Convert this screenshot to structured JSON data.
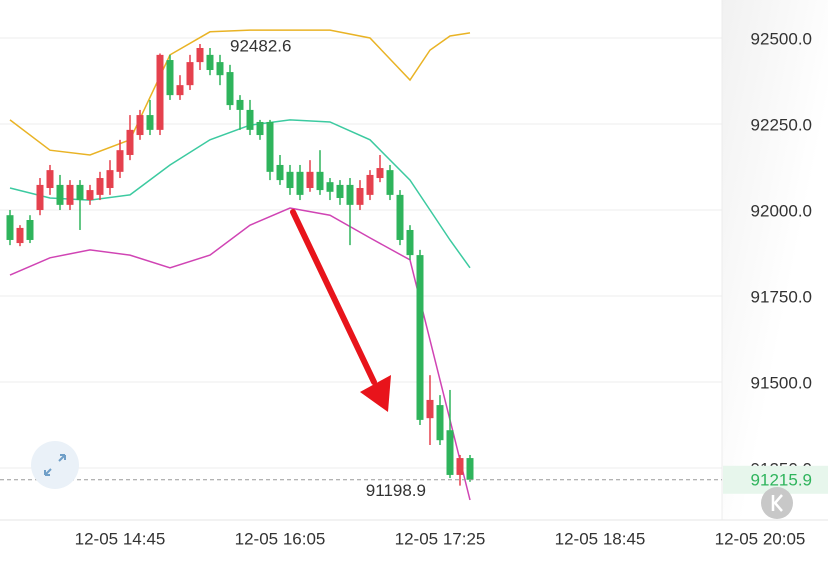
{
  "chart_data": {
    "type": "candlestick",
    "up_color": "#e5414e",
    "down_color": "#2fb45c",
    "ylim": [
      91099,
      92610.5
    ],
    "yticks": [
      {
        "value": 92500,
        "label": "92500.0"
      },
      {
        "value": 92250,
        "label": "92250.0"
      },
      {
        "value": 92000,
        "label": "92000.0"
      },
      {
        "value": 91750,
        "label": "91750.0"
      },
      {
        "value": 91500,
        "label": "91500.0"
      },
      {
        "value": 91250,
        "label": "91250.0"
      }
    ],
    "xlim": [
      "12-05 13:45",
      "12-05 20:39"
    ],
    "xticks": [
      "12-05 14:45",
      "12-05 16:05",
      "12-05 17:25",
      "12-05 18:45",
      "12-05 20:05"
    ],
    "grid": true,
    "candles": {
      "x": [
        "12-05 13:50",
        "12-05 13:55",
        "12-05 14:00",
        "12-05 14:05",
        "12-05 14:10",
        "12-05 14:15",
        "12-05 14:20",
        "12-05 14:25",
        "12-05 14:30",
        "12-05 14:35",
        "12-05 14:40",
        "12-05 14:45",
        "12-05 14:50",
        "12-05 14:55",
        "12-05 15:00",
        "12-05 15:05",
        "12-05 15:10",
        "12-05 15:15",
        "12-05 15:20",
        "12-05 15:25",
        "12-05 15:30",
        "12-05 15:35",
        "12-05 15:40",
        "12-05 15:45",
        "12-05 15:50",
        "12-05 15:55",
        "12-05 16:00",
        "12-05 16:05",
        "12-05 16:10",
        "12-05 16:15",
        "12-05 16:20",
        "12-05 16:25",
        "12-05 16:30",
        "12-05 16:35",
        "12-05 16:40",
        "12-05 16:45",
        "12-05 16:50",
        "12-05 16:55",
        "12-05 17:00",
        "12-05 17:05",
        "12-05 17:10",
        "12-05 17:15",
        "12-05 17:20",
        "12-05 17:25",
        "12-05 17:30",
        "12-05 17:35",
        "12-05 17:40"
      ],
      "open": [
        91985,
        91904,
        91971,
        92000,
        92064,
        92073,
        92015,
        92073,
        92029,
        92044,
        92064,
        92111,
        92160,
        92218,
        92276,
        92233,
        92436,
        92334,
        92363,
        92430,
        92451,
        92430,
        92401,
        92320,
        92291,
        92256,
        92256,
        92131,
        92111,
        92111,
        92064,
        92111,
        92081,
        92073,
        92073,
        92015,
        92044,
        92093,
        92116,
        92044,
        91942,
        91869,
        91395,
        91433,
        91360,
        91230,
        91279
      ],
      "high": [
        92000,
        91956,
        91985,
        92093,
        92131,
        92102,
        92087,
        92087,
        92073,
        92111,
        92145,
        92204,
        92276,
        92291,
        92320,
        92455,
        92451,
        92392,
        92451,
        92482.6,
        92471,
        92451,
        92422,
        92334,
        92320,
        92262,
        92262,
        92160,
        92131,
        92131,
        92145,
        92174,
        92093,
        92087,
        92093,
        92087,
        92116,
        92160,
        92131,
        92058,
        91956,
        91884,
        91520,
        91462,
        91477,
        91288,
        91288
      ],
      "low": [
        91898,
        91895,
        91904,
        91985,
        92044,
        92000,
        92000,
        91942,
        92015,
        92029,
        92044,
        92093,
        92145,
        92204,
        92218,
        92218,
        92320,
        92320,
        92349,
        92407,
        92392,
        92363,
        92291,
        92233,
        92218,
        92204,
        92087,
        92073,
        92044,
        92029,
        92053,
        92044,
        92029,
        92015,
        91898,
        92000,
        92029,
        92081,
        92029,
        91898,
        91855,
        91375,
        91317,
        91317,
        91221,
        91198.9,
        91210
      ],
      "close": [
        91913,
        91948,
        91913,
        92073,
        92116,
        92015,
        92073,
        92029,
        92058,
        92093,
        92116,
        92174,
        92233,
        92276,
        92233,
        92451,
        92334,
        92363,
        92430,
        92471,
        92407,
        92392,
        92305,
        92291,
        92233,
        92218,
        92111,
        92087,
        92064,
        92044,
        92111,
        92058,
        92053,
        92035,
        92015,
        92064,
        92102,
        92122,
        92044,
        91913,
        91869,
        91390,
        91448,
        91331,
        91230,
        91279,
        91215.9
      ]
    },
    "lines": [
      {
        "color": "#e9b325",
        "x": [
          "12-05 13:50",
          "12-05 14:10",
          "12-05 14:30",
          "12-05 14:50",
          "12-05 15:10",
          "12-05 15:30",
          "12-05 15:50",
          "12-05 16:10",
          "12-05 16:30",
          "12-05 16:50",
          "12-05 17:10",
          "12-05 17:20",
          "12-05 17:30",
          "12-05 17:40"
        ],
        "values": [
          92262,
          92174,
          92160,
          92204,
          92451,
          92518,
          92523,
          92523,
          92523,
          92500,
          92378,
          92465,
          92506,
          92515
        ]
      },
      {
        "color": "#3ccaa0",
        "x": [
          "12-05 13:50",
          "12-05 14:10",
          "12-05 14:30",
          "12-05 14:50",
          "12-05 15:10",
          "12-05 15:30",
          "12-05 15:50",
          "12-05 16:10",
          "12-05 16:30",
          "12-05 16:50",
          "12-05 17:10",
          "12-05 17:20",
          "12-05 17:30",
          "12-05 17:40"
        ],
        "values": [
          92064,
          92035,
          92029,
          92044,
          92131,
          92204,
          92247,
          92262,
          92256,
          92204,
          92087,
          92000,
          91913,
          91832
        ]
      },
      {
        "color": "#d044b4",
        "x": [
          "12-05 13:50",
          "12-05 14:10",
          "12-05 14:30",
          "12-05 14:50",
          "12-05 15:10",
          "12-05 15:30",
          "12-05 15:50",
          "12-05 16:10",
          "12-05 16:30",
          "12-05 16:50",
          "12-05 17:10",
          "12-05 17:20",
          "12-05 17:30",
          "12-05 17:40"
        ],
        "values": [
          91811,
          91861,
          91884,
          91869,
          91832,
          91869,
          91956,
          92006,
          91985,
          91919,
          91855,
          91622,
          91390,
          91157
        ]
      }
    ],
    "max_label": 92482.6,
    "min_label": 91198.9,
    "last_price": 91215.9
  }
}
